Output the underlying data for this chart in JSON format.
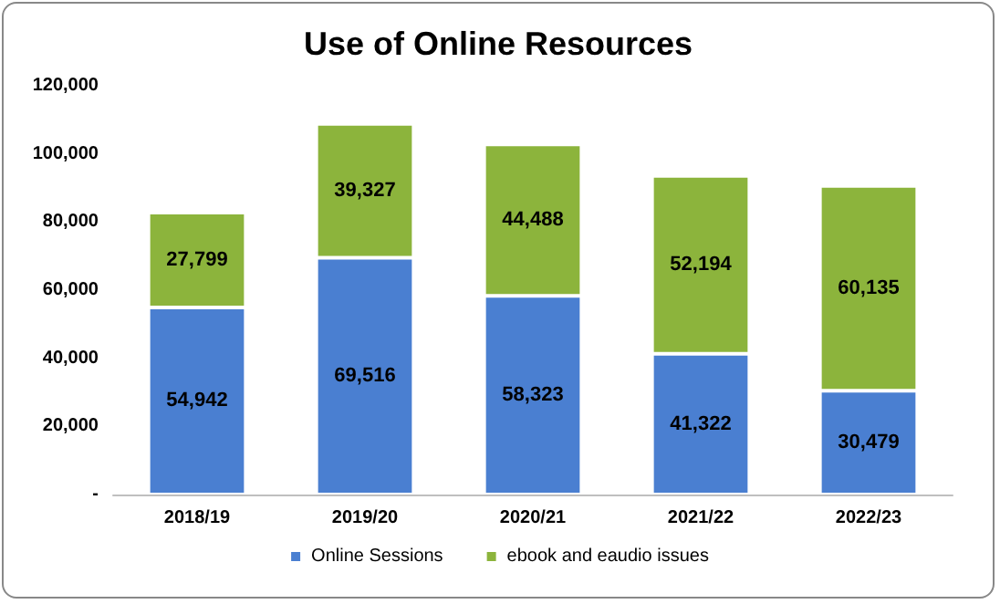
{
  "chart_data": {
    "type": "bar",
    "title": "Use of Online Resources",
    "stacked": true,
    "legend": "bottom",
    "grid": false,
    "categories": [
      "2018/19",
      "2019/20",
      "2020/21",
      "2021/22",
      "2022/23"
    ],
    "series": [
      {
        "name": "Online Sessions",
        "color": "#4a7fd1",
        "values": [
          54942,
          69516,
          58323,
          41322,
          30479
        ],
        "value_labels": [
          "54,942",
          "69,516",
          "58,323",
          "41,322",
          "30,479"
        ]
      },
      {
        "name": "ebook and eaudio issues",
        "color": "#8cb43c",
        "values": [
          27799,
          39327,
          44488,
          52194,
          60135
        ],
        "value_labels": [
          "27,799",
          "39,327",
          "44,488",
          "52,194",
          "60,135"
        ]
      }
    ],
    "ylim": [
      0,
      120000
    ],
    "yticks": [
      {
        "value": 0,
        "label": "-"
      },
      {
        "value": 20000,
        "label": "20,000"
      },
      {
        "value": 40000,
        "label": "40,000"
      },
      {
        "value": 60000,
        "label": "60,000"
      },
      {
        "value": 80000,
        "label": "80,000"
      },
      {
        "value": 100000,
        "label": "100,000"
      },
      {
        "value": 120000,
        "label": "120,000"
      }
    ]
  }
}
